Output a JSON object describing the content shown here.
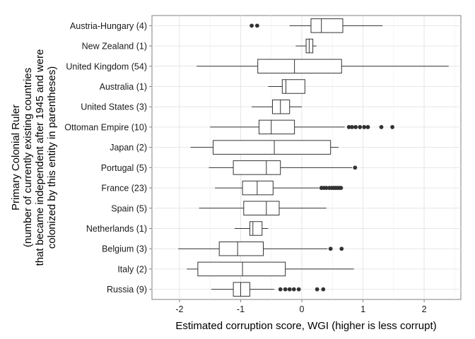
{
  "chart_data": {
    "type": "boxplot",
    "orientation": "horizontal",
    "xlabel": "Estimated corruption score, WGI (higher is less corrupt)",
    "ylabel_lines": [
      "Primary Colonial Ruler",
      "(number of currently existing countries",
      "that became independent after 1945 and were",
      "colonized by this entity in parentheses)"
    ],
    "xlim": [
      -2.45,
      2.6
    ],
    "xticks": [
      -2,
      -1,
      0,
      1,
      2
    ],
    "grid": true,
    "categories": [
      {
        "label": "Austria-Hungary (4)",
        "whisker_low": -0.2,
        "q1": 0.15,
        "median": 0.32,
        "q3": 0.67,
        "whisker_high": 1.32,
        "outliers": [
          -0.82,
          -0.73
        ]
      },
      {
        "label": "New Zealand (1)",
        "whisker_low": -0.1,
        "q1": 0.07,
        "median": 0.12,
        "q3": 0.18,
        "whisker_high": 0.24,
        "outliers": []
      },
      {
        "label": "United Kingdom (54)",
        "whisker_low": -1.72,
        "q1": -0.72,
        "median": -0.12,
        "q3": 0.65,
        "whisker_high": 2.4,
        "outliers": []
      },
      {
        "label": "Australia (1)",
        "whisker_low": -0.55,
        "q1": -0.32,
        "median": -0.26,
        "q3": 0.05,
        "whisker_high": 0.05,
        "outliers": []
      },
      {
        "label": "United States (3)",
        "whisker_low": -0.82,
        "q1": -0.48,
        "median": -0.35,
        "q3": -0.2,
        "whisker_high": 0.0,
        "outliers": []
      },
      {
        "label": "Ottoman Empire (10)",
        "whisker_low": -1.5,
        "q1": -0.7,
        "median": -0.5,
        "q3": -0.12,
        "whisker_high": 0.7,
        "outliers": [
          0.77,
          0.82,
          0.88,
          0.95,
          1.02,
          1.08,
          1.3,
          1.48
        ]
      },
      {
        "label": "Japan (2)",
        "whisker_low": -1.82,
        "q1": -1.45,
        "median": -0.45,
        "q3": 0.47,
        "whisker_high": 0.6,
        "outliers": []
      },
      {
        "label": "Portugal (5)",
        "whisker_low": -1.52,
        "q1": -1.12,
        "median": -0.58,
        "q3": -0.35,
        "whisker_high": 0.82,
        "outliers": [
          0.87
        ]
      },
      {
        "label": "France (23)",
        "whisker_low": -1.42,
        "q1": -0.97,
        "median": -0.73,
        "q3": -0.47,
        "whisker_high": 0.28,
        "outliers": [
          0.32,
          0.36,
          0.4,
          0.45,
          0.49,
          0.52,
          0.55,
          0.58,
          0.61,
          0.64
        ]
      },
      {
        "label": "Spain (5)",
        "whisker_low": -1.68,
        "q1": -0.95,
        "median": -0.58,
        "q3": -0.37,
        "whisker_high": 0.4,
        "outliers": []
      },
      {
        "label": "Netherlands (1)",
        "whisker_low": -1.1,
        "q1": -0.85,
        "median": -0.8,
        "q3": -0.65,
        "whisker_high": -0.55,
        "outliers": []
      },
      {
        "label": "Belgium (3)",
        "whisker_low": -2.02,
        "q1": -1.35,
        "median": -1.05,
        "q3": -0.63,
        "whisker_high": 0.42,
        "outliers": [
          0.47,
          0.65
        ]
      },
      {
        "label": "Italy (2)",
        "whisker_low": -1.88,
        "q1": -1.7,
        "median": -0.97,
        "q3": -0.27,
        "whisker_high": 0.85,
        "outliers": []
      },
      {
        "label": "Russia (9)",
        "whisker_low": -1.48,
        "q1": -1.12,
        "median": -1.0,
        "q3": -0.85,
        "whisker_high": -0.45,
        "outliers": [
          -0.35,
          -0.27,
          -0.2,
          -0.13,
          -0.05,
          0.25,
          0.35
        ]
      }
    ]
  }
}
